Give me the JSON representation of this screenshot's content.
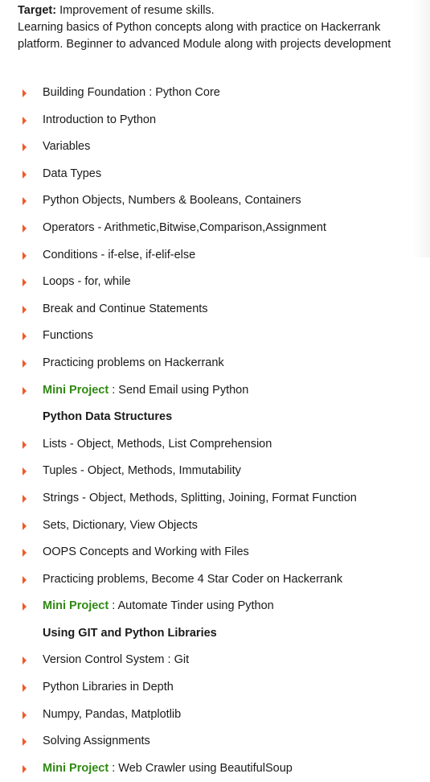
{
  "intro": {
    "target_label": "Target:",
    "target_text": " Improvement of resume skills.",
    "description": "Learning basics of Python concepts along with practice on Hackerrank platform. Beginner to advanced Module along with projects development"
  },
  "colors": {
    "bullet": "#f05a28",
    "mini_project": "#2f8a12"
  },
  "bullet_icon": "triangle-right",
  "items": [
    {
      "type": "item",
      "text": "Building Foundation : Python Core"
    },
    {
      "type": "item",
      "text": "Introduction to Python"
    },
    {
      "type": "item",
      "text": "Variables"
    },
    {
      "type": "item",
      "text": "Data Types"
    },
    {
      "type": "item",
      "text": "Python Objects, Numbers & Booleans, Containers"
    },
    {
      "type": "item",
      "text": "Operators - Arithmetic,Bitwise,Comparison,Assignment"
    },
    {
      "type": "item",
      "text": "Conditions - if-else, if-elif-else"
    },
    {
      "type": "item",
      "text": "Loops - for, while"
    },
    {
      "type": "item",
      "text": "Break and Continue Statements"
    },
    {
      "type": "item",
      "text": "Functions"
    },
    {
      "type": "item",
      "text": "Practicing problems on Hackerrank"
    },
    {
      "type": "mini",
      "label": "Mini Project",
      "text": " : Send Email using Python"
    },
    {
      "type": "heading",
      "text": "Python Data Structures"
    },
    {
      "type": "item",
      "text": "Lists - Object, Methods, List Comprehension"
    },
    {
      "type": "item",
      "text": "Tuples - Object, Methods, Immutability"
    },
    {
      "type": "item",
      "text": "Strings - Object, Methods, Splitting, Joining, Format Function"
    },
    {
      "type": "item",
      "text": "Sets, Dictionary, View Objects"
    },
    {
      "type": "item",
      "text": "OOPS Concepts and Working with Files"
    },
    {
      "type": "item",
      "text": "Practicing problems, Become 4 Star Coder on Hackerrank"
    },
    {
      "type": "mini",
      "label": "Mini Project",
      "text": " : Automate Tinder using Python"
    },
    {
      "type": "heading",
      "text": "Using GIT and Python Libraries"
    },
    {
      "type": "item",
      "text": "Version Control System : Git"
    },
    {
      "type": "item",
      "text": "Python Libraries in Depth"
    },
    {
      "type": "item",
      "text": "Numpy, Pandas, Matplotlib"
    },
    {
      "type": "item",
      "text": "Solving Assignments"
    },
    {
      "type": "mini",
      "label": "Mini Project",
      "text": " : Web Crawler using BeautifulSoup"
    }
  ]
}
